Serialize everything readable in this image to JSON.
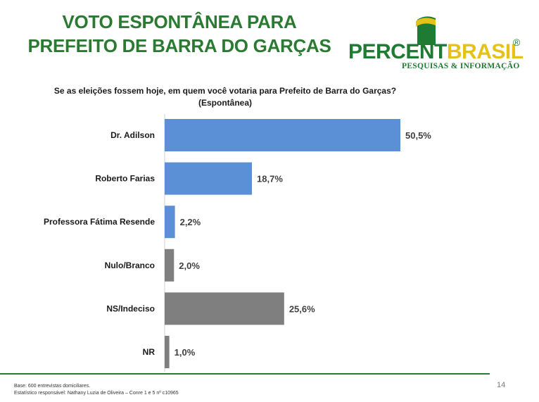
{
  "header": {
    "title_line1": "VOTO ESPONTÂNEA PARA",
    "title_line2": "PREFEITO DE BARRA DO GARÇAS"
  },
  "logo": {
    "word_percent": "PERCENT",
    "word_brasil": "BRASIL",
    "registered": "®",
    "subtitle": "PESQUISAS & INFORMAÇÃO",
    "colors": {
      "green": "#1f7a34",
      "yellow": "#e4c21a"
    }
  },
  "question": {
    "line1": "Se as eleições fossem hoje, em quem você votaria para Prefeito de Barra do  Garças?",
    "line2": "(Espontânea)"
  },
  "chart_data": {
    "type": "bar",
    "orientation": "horizontal",
    "categories": [
      "Dr. Adilson",
      "Roberto Farias",
      "Professora Fátima Resende",
      "Nulo/Branco",
      "NS/Indeciso",
      "NR"
    ],
    "values": [
      50.5,
      18.7,
      2.2,
      2.0,
      25.6,
      1.0
    ],
    "value_labels": [
      "50,5%",
      "18,7%",
      "2,2%",
      "2,0%",
      "25,6%",
      "1,0%"
    ],
    "bar_colors": [
      "#5b8fd6",
      "#5b8fd6",
      "#5b8fd6",
      "#7f7f7f",
      "#7f7f7f",
      "#7f7f7f"
    ],
    "xlim": [
      0,
      50.5
    ],
    "grid": false,
    "legend": "none"
  },
  "footer": {
    "base": "Base: 600 entrevistas domiciliares.",
    "statistician": "Estatístico responsável: Nathany Luzia de Oliveira – Conre 1 e 5 nº c10965",
    "page_number": "14"
  }
}
